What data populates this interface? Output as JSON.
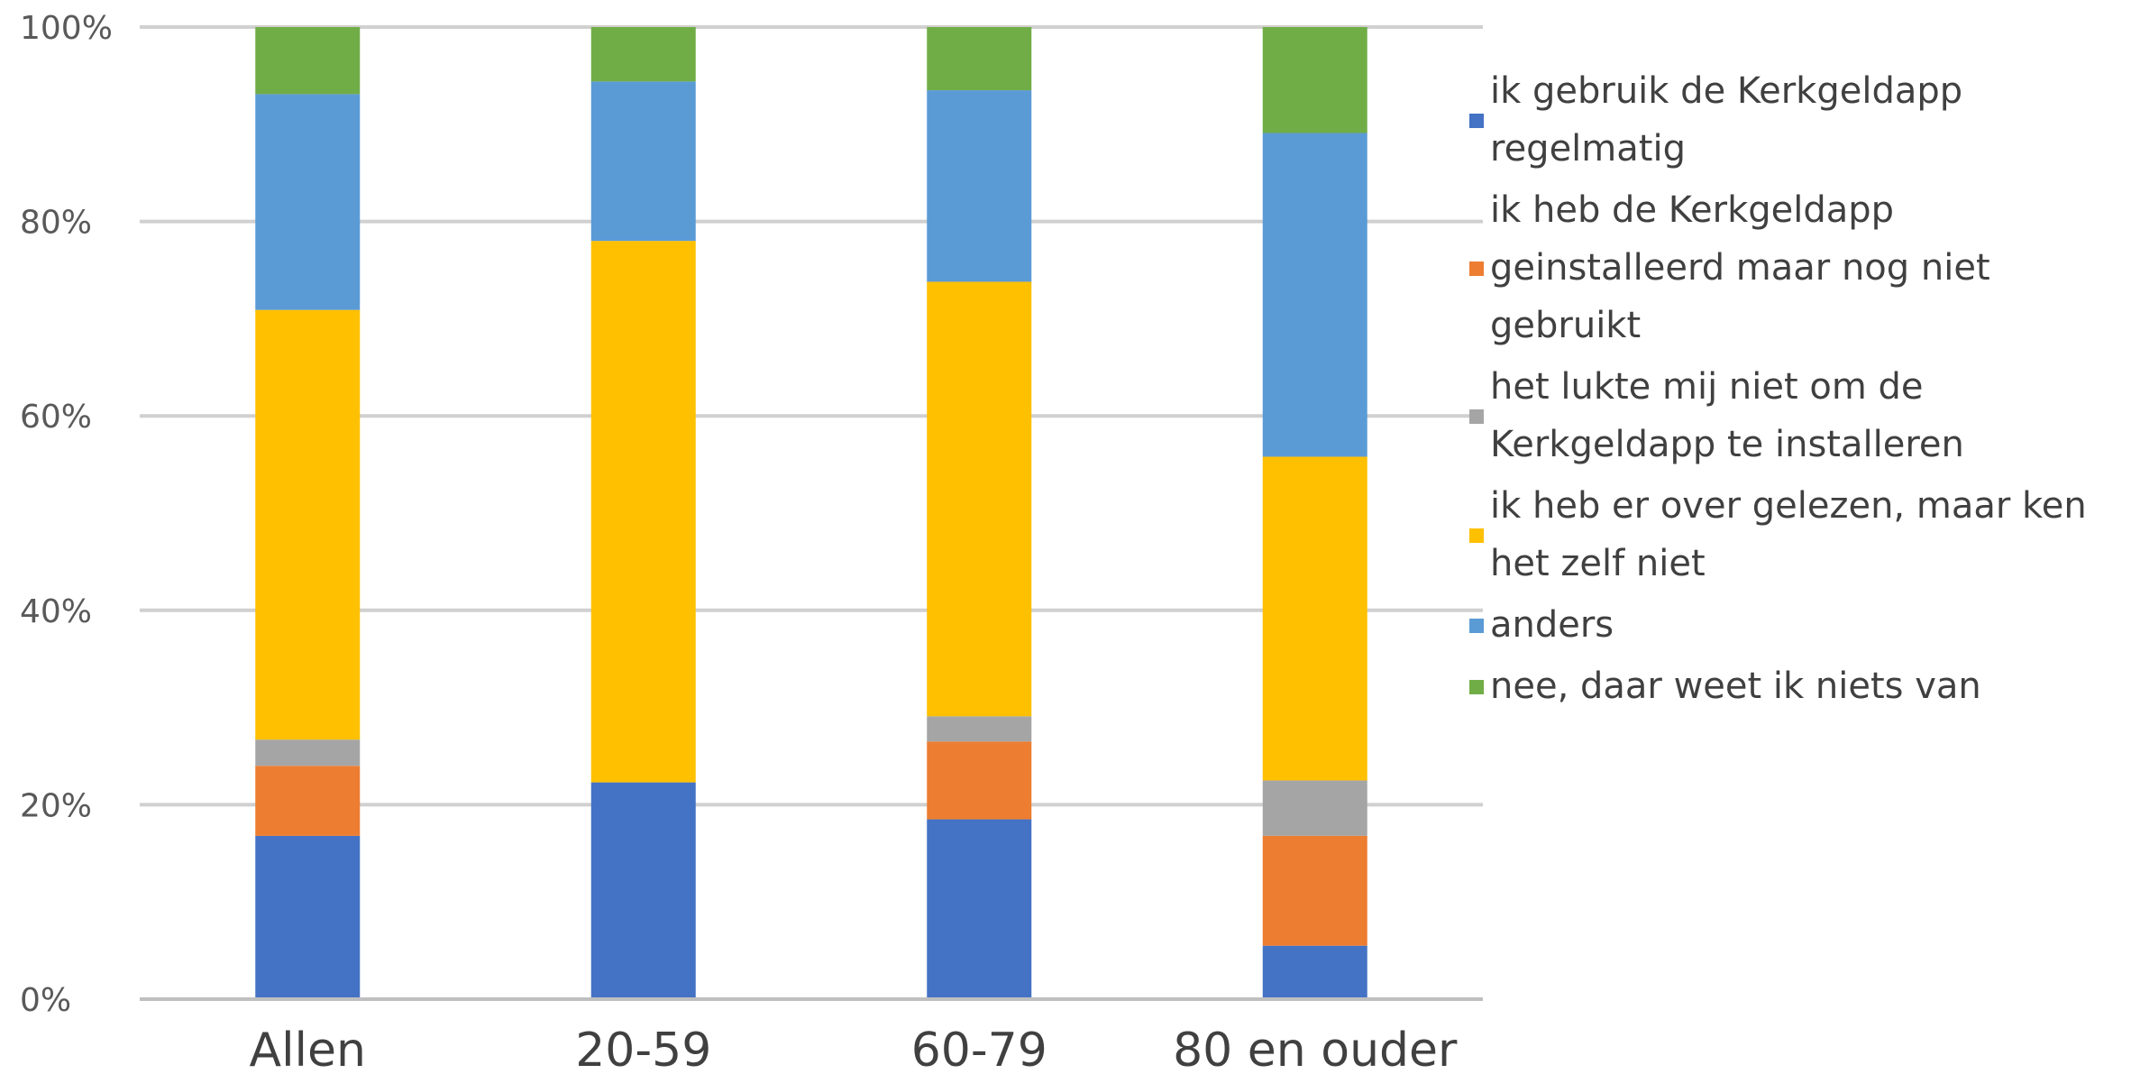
{
  "chart_data": {
    "type": "bar",
    "stacked": true,
    "percent_stacked": true,
    "categories": [
      "Allen",
      "20-59",
      "60-79",
      "80 en ouder"
    ],
    "series": [
      {
        "name": "ik gebruik de Kerkgeldapp regelmatig",
        "legend_lines": [
          "ik gebruik de Kerkgeldapp",
          "regelmatig"
        ],
        "color": "#4472C4",
        "values": [
          16.8,
          22.3,
          18.5,
          5.5
        ]
      },
      {
        "name": "ik heb de Kerkgeldapp geinstalleerd maar nog niet gebruikt",
        "legend_lines": [
          "ik heb de Kerkgeldapp",
          "geinstalleerd maar nog niet",
          "gebruikt"
        ],
        "color": "#ED7D31",
        "values": [
          7.2,
          0,
          8.0,
          11.3
        ]
      },
      {
        "name": "het lukte mij niet om de Kerkgeldapp te installeren",
        "legend_lines": [
          "het lukte mij niet om de",
          "Kerkgeldapp te installeren"
        ],
        "color": "#A5A5A5",
        "values": [
          2.7,
          0,
          2.6,
          5.7
        ]
      },
      {
        "name": "ik heb er over gelezen, maar ken het zelf niet",
        "legend_lines": [
          "ik heb er over gelezen, maar ken",
          "het zelf niet"
        ],
        "color": "#FFC000",
        "values": [
          44.2,
          55.7,
          44.7,
          33.3
        ]
      },
      {
        "name": "anders",
        "legend_lines": [
          "anders"
        ],
        "color": "#5B9BD5",
        "values": [
          22.2,
          16.4,
          19.7,
          33.3
        ]
      },
      {
        "name": "nee, daar weet ik niets van",
        "legend_lines": [
          "nee, daar weet ik niets van"
        ],
        "color": "#70AD47",
        "values": [
          6.9,
          5.6,
          6.5,
          10.9
        ]
      }
    ],
    "yticks": [
      "0%",
      "20%",
      "40%",
      "60%",
      "80%",
      "100%"
    ],
    "ylim": [
      0,
      100
    ],
    "grid": true,
    "legend": "right"
  }
}
